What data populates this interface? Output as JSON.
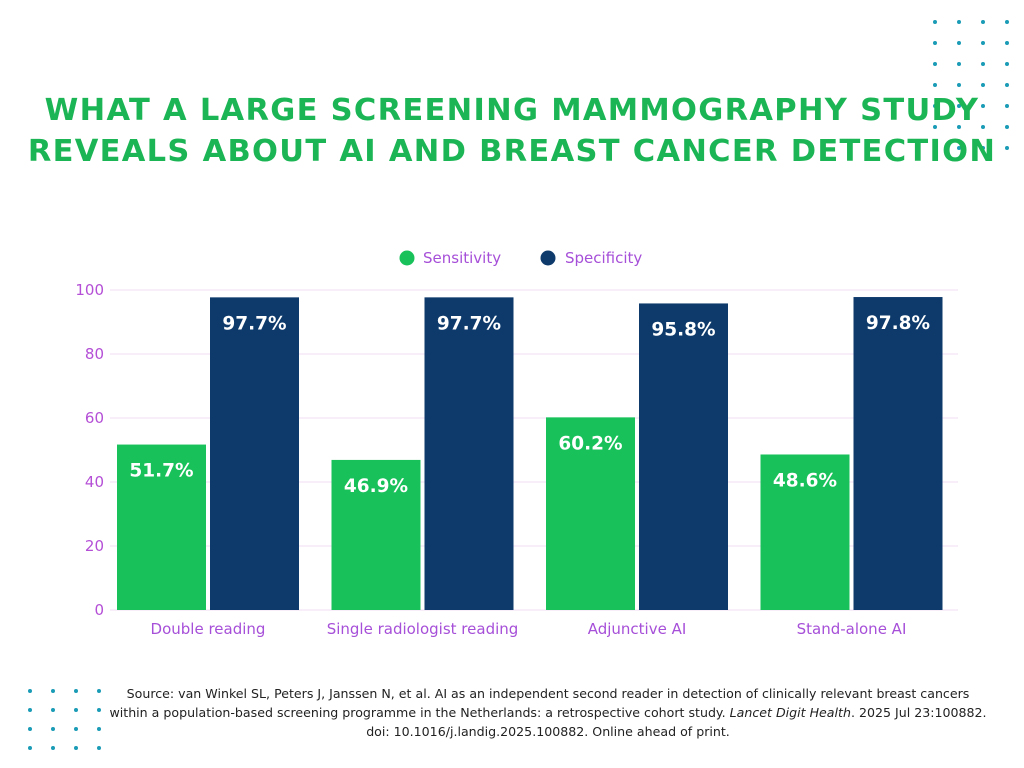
{
  "title": {
    "line1": "WHAT A LARGE SCREENING MAMMOGRAPHY STUDY",
    "line2": "REVEALS ABOUT AI AND BREAST CANCER DETECTION"
  },
  "colors": {
    "title": "#1cb555",
    "sensitivity": "#18c15a",
    "specificity": "#0d3a6b",
    "axis_text": "#b44fd6",
    "gridline": "#f1dcf6",
    "dots": "#1a9bb6"
  },
  "chart_data": {
    "type": "bar",
    "categories": [
      "Double reading",
      "Single radiologist reading",
      "Adjunctive AI",
      "Stand-alone AI"
    ],
    "series": [
      {
        "name": "Sensitivity",
        "values": [
          51.7,
          46.9,
          60.2,
          48.6
        ],
        "labels": [
          "51.7%",
          "46.9%",
          "60.2%",
          "48.6%"
        ]
      },
      {
        "name": "Specificity",
        "values": [
          97.7,
          97.7,
          95.8,
          97.8
        ],
        "labels": [
          "97.7%",
          "97.7%",
          "95.8%",
          "97.8%"
        ]
      }
    ],
    "yticks": [
      "0",
      "20",
      "40",
      "60",
      "80",
      "100"
    ],
    "ylim": [
      0,
      100
    ],
    "legend_position": "top-center",
    "grid": true
  },
  "source": {
    "prefix": "Source: van Winkel SL, Peters J, Janssen N, et al. AI as an independent second reader in detection of clinically relevant breast cancers within a population-based screening programme in the Netherlands: a retrospective cohort study. ",
    "journal": "Lancet Digit Health",
    "suffix": ". 2025 Jul 23:100882. doi: 10.1016/j.landig.2025.100882. Online ahead of print."
  }
}
